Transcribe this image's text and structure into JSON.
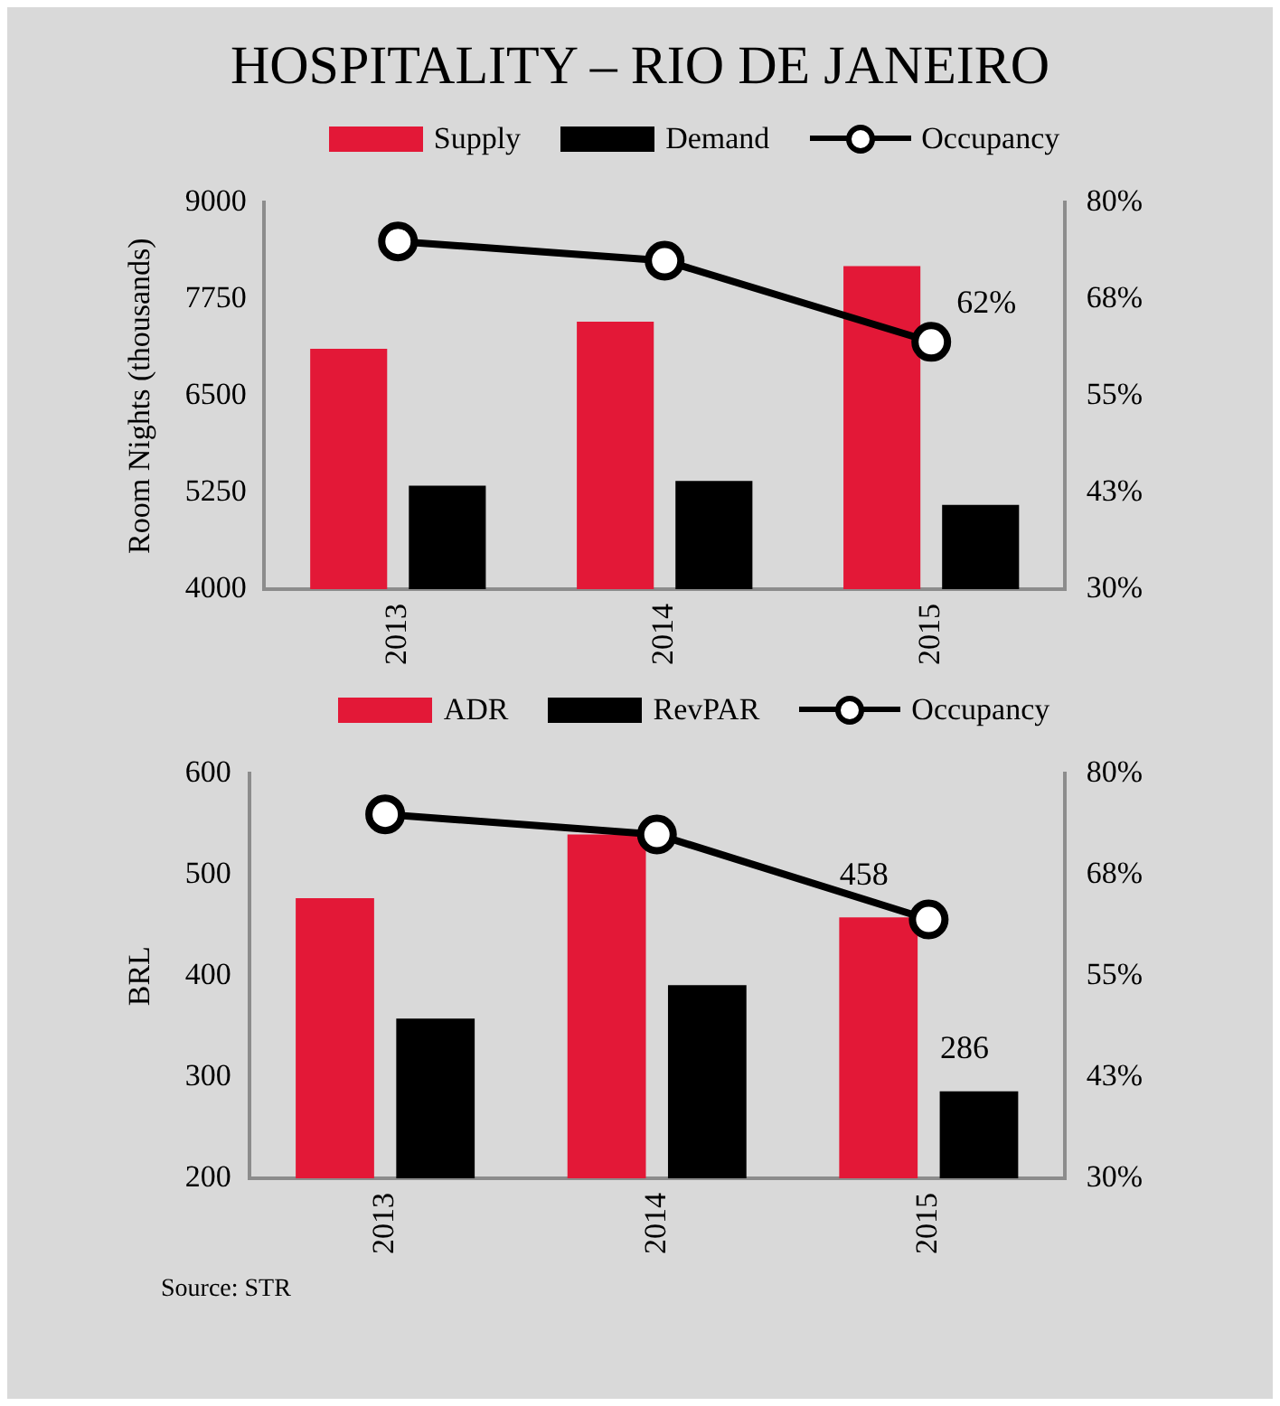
{
  "chart_data": [
    {
      "type": "bar",
      "title": "HOSPITALITY – RIO DE JANEIRO",
      "ylabel": "Room Nights (thousands)",
      "categories": [
        "2013",
        "2014",
        "2015"
      ],
      "series": [
        {
          "name": "Supply",
          "color": "#e31837",
          "values": [
            7110,
            7460,
            8180
          ]
        },
        {
          "name": "Demand",
          "color": "#000000",
          "values": [
            5340,
            5400,
            5090
          ]
        },
        {
          "name": "Occupancy",
          "type": "line",
          "axis": "y2",
          "color": "#000000",
          "marker": "circle",
          "values": [
            75,
            72.5,
            62
          ],
          "value_labels": [
            null,
            null,
            "62%"
          ]
        }
      ],
      "ylim": [
        4000,
        9000
      ],
      "yticks": [
        4000,
        5250,
        6500,
        7750,
        9000
      ],
      "y2lim": [
        30,
        80
      ],
      "y2ticks": [
        {
          "value": 30,
          "label": "30%"
        },
        {
          "value": 42.5,
          "label": "43%"
        },
        {
          "value": 55,
          "label": "55%"
        },
        {
          "value": 67.5,
          "label": "68%"
        },
        {
          "value": 80,
          "label": "80%"
        }
      ],
      "grid": false,
      "legend": "top"
    },
    {
      "type": "bar",
      "ylabel": "BRL",
      "categories": [
        "2013",
        "2014",
        "2015"
      ],
      "series": [
        {
          "name": "ADR",
          "color": "#e31837",
          "values": [
            477,
            540,
            458
          ],
          "value_labels": [
            null,
            null,
            "458"
          ]
        },
        {
          "name": "RevPAR",
          "color": "#000000",
          "values": [
            358,
            391,
            286
          ],
          "value_labels": [
            null,
            null,
            "286"
          ]
        },
        {
          "name": "Occupancy",
          "type": "line",
          "axis": "y2",
          "color": "#000000",
          "marker": "circle",
          "values": [
            75,
            72.5,
            62
          ]
        }
      ],
      "ylim": [
        200,
        600
      ],
      "yticks": [
        200,
        300,
        400,
        500,
        600
      ],
      "y2lim": [
        30,
        80
      ],
      "y2ticks": [
        {
          "value": 30,
          "label": "30%"
        },
        {
          "value": 42.5,
          "label": "43%"
        },
        {
          "value": 55,
          "label": "55%"
        },
        {
          "value": 67.5,
          "label": "68%"
        },
        {
          "value": 80,
          "label": "80%"
        }
      ],
      "grid": false,
      "legend": "top",
      "annotations": [
        "Source: STR"
      ]
    }
  ]
}
